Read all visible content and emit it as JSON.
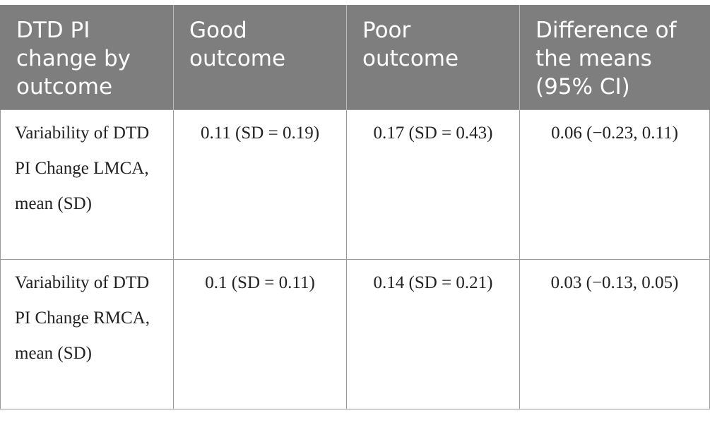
{
  "table": {
    "headers": [
      "DTD PI change by outcome",
      "Good outcome",
      "Poor outcome",
      "Difference of the means (95% CI)"
    ],
    "rows": [
      {
        "label": "Variability of DTD PI Change LMCA, mean (SD)",
        "good_outcome": "0.11 (SD = 0.19)",
        "poor_outcome": "0.17 (SD = 0.43)",
        "difference": "0.06 (−0.23, 0.11)"
      },
      {
        "label": "Variability of DTD PI Change RMCA, mean (SD)",
        "good_outcome": "0.1 (SD = 0.11)",
        "poor_outcome": "0.14 (SD = 0.21)",
        "difference": "0.03 (−0.13, 0.05)"
      }
    ]
  }
}
